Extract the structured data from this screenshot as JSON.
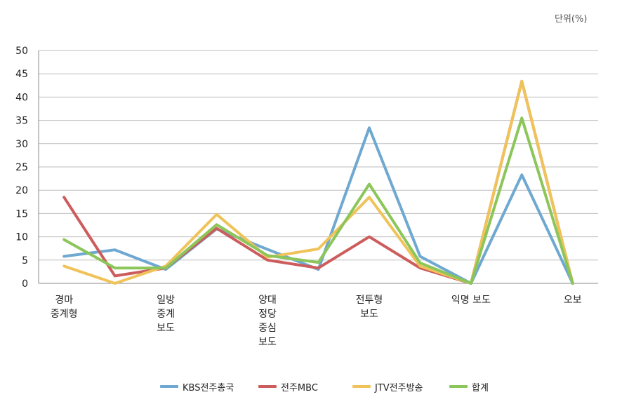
{
  "unit_label": "단위(%)",
  "chart_data": {
    "type": "line",
    "title": "",
    "xlabel": "",
    "ylabel": "",
    "ylim": [
      0,
      50
    ],
    "yticks": [
      0,
      5,
      10,
      15,
      20,
      25,
      30,
      35,
      40,
      45,
      50
    ],
    "grid": true,
    "legend_position": "bottom",
    "categories": [
      "경마\n중계형",
      "",
      "일방\n중계\n보도",
      "",
      "양대\n정당\n중심\n보도",
      "",
      "전투형\n보도",
      "",
      "익명 보도",
      "",
      "오보"
    ],
    "series": [
      {
        "name": "KBS전주총국",
        "color": "#6fa8d0",
        "values": [
          5.8,
          7.2,
          3,
          11.7,
          7.3,
          3,
          33.4,
          5.8,
          0,
          23.3,
          0
        ]
      },
      {
        "name": "전주MBC",
        "color": "#cd5c5c",
        "values": [
          18.5,
          1.6,
          3.3,
          11.8,
          5,
          3.3,
          10,
          3.3,
          0,
          43.4,
          0
        ]
      },
      {
        "name": "JTV전주방송",
        "color": "#f0c35a",
        "values": [
          3.7,
          0,
          3.7,
          14.8,
          5.6,
          7.4,
          18.5,
          3.7,
          0,
          43.4,
          0
        ]
      },
      {
        "name": "합계",
        "color": "#8cc65a",
        "values": [
          9.4,
          3.3,
          3.3,
          12.6,
          6,
          4.5,
          21.3,
          4.4,
          0,
          35.5,
          0
        ]
      }
    ]
  }
}
